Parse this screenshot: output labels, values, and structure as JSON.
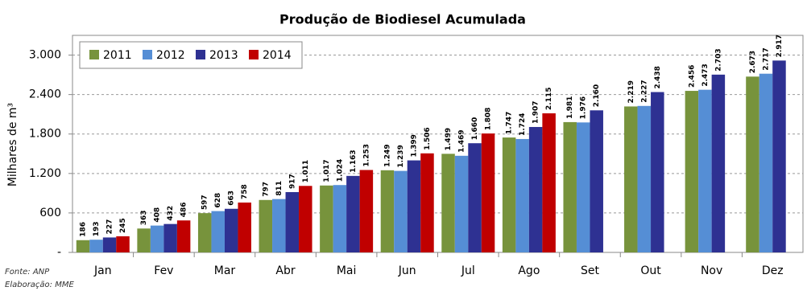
{
  "chart_data": {
    "type": "bar",
    "title": "Produção de Biodiesel Acumulada",
    "y_label": "Milhares de m³",
    "categories": [
      "Jan",
      "Fev",
      "Mar",
      "Abr",
      "Mai",
      "Jun",
      "Jul",
      "Ago",
      "Set",
      "Out",
      "Nov",
      "Dez"
    ],
    "series": [
      {
        "name": "2011",
        "color": "#77933c",
        "values": [
          186,
          363,
          597,
          797,
          1017,
          1249,
          1499,
          1747,
          1981,
          2219,
          2456,
          2673
        ],
        "value_labels": [
          "186",
          "363",
          "597",
          "797",
          "1.017",
          "1.249",
          "1.499",
          "1.747",
          "1.981",
          "2.219",
          "2.456",
          "2.673"
        ]
      },
      {
        "name": "2012",
        "color": "#558ed5",
        "values": [
          193,
          408,
          628,
          811,
          1024,
          1239,
          1469,
          1724,
          1976,
          2227,
          2473,
          2717
        ],
        "value_labels": [
          "193",
          "408",
          "628",
          "811",
          "1.024",
          "1.239",
          "1.469",
          "1.724",
          "1.976",
          "2.227",
          "2.473",
          "2.717"
        ]
      },
      {
        "name": "2013",
        "color": "#2e3192",
        "values": [
          227,
          432,
          663,
          917,
          1163,
          1399,
          1660,
          1907,
          2160,
          2438,
          2703,
          2917
        ],
        "value_labels": [
          "227",
          "432",
          "663",
          "917",
          "1.163",
          "1.399",
          "1.660",
          "1.907",
          "2.160",
          "2.438",
          "2.703",
          "2.917"
        ]
      },
      {
        "name": "2014",
        "color": "#c00000",
        "values": [
          245,
          486,
          758,
          1011,
          1253,
          1506,
          1808,
          2115,
          null,
          null,
          null,
          null
        ],
        "value_labels": [
          "245",
          "486",
          "758",
          "1.011",
          "1.253",
          "1.506",
          "1.808",
          "2.115",
          null,
          null,
          null,
          null
        ]
      }
    ],
    "ylim": [
      0,
      3300
    ],
    "yticks": [
      {
        "value": 0,
        "label": "-"
      },
      600,
      {
        "value": 1200,
        "label": "1.200"
      },
      {
        "value": 1800,
        "label": "1.800"
      },
      {
        "value": 2400,
        "label": "2.400"
      },
      {
        "value": 3000,
        "label": "3.000"
      }
    ],
    "grid": true,
    "legend": "top-left"
  },
  "notes": {
    "source": "Fonte: ANP",
    "credit": "Elaboração: MME"
  }
}
